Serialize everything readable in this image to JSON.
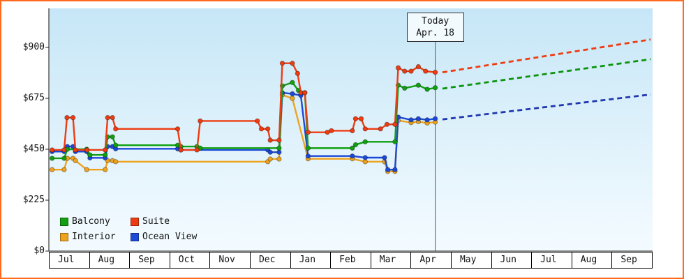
{
  "frame": {
    "border_color": "#ff6a1f",
    "plot_bg_top": "#c6e6f7",
    "plot_bg_bottom": "#f3fbff"
  },
  "today": {
    "label_line1": "Today",
    "label_line2": "Apr. 18",
    "x_months": 9.6
  },
  "y_axis": {
    "ticks": [
      "$0",
      "$225",
      "$450",
      "$675",
      "$900"
    ],
    "values": [
      0,
      225,
      450,
      675,
      900
    ]
  },
  "x_axis": {
    "months": [
      "Jul",
      "Aug",
      "Sep",
      "Oct",
      "Nov",
      "Dec",
      "Jan",
      "Feb",
      "Mar",
      "Apr",
      "May",
      "Jun",
      "Jul",
      "Aug",
      "Sep"
    ]
  },
  "legend": [
    {
      "name": "Balcony",
      "color": "#11a011"
    },
    {
      "name": "Suite",
      "color": "#ee3c12"
    },
    {
      "name": "Interior",
      "color": "#eea31f"
    },
    {
      "name": "Ocean View",
      "color": "#1c49d8"
    }
  ],
  "chart_data": {
    "type": "line",
    "title": "",
    "xlabel": "",
    "ylabel": "",
    "x_unit": "months since Jul 1 (0 = Jul, 1 = Aug, ...)",
    "x_range": [
      0,
      15
    ],
    "ylim": [
      0,
      900
    ],
    "y_tick_labels": [
      "$0",
      "$225",
      "$450",
      "$675",
      "$900"
    ],
    "x_tick_labels": [
      "Jul",
      "Aug",
      "Sep",
      "Oct",
      "Nov",
      "Dec",
      "Jan",
      "Feb",
      "Mar",
      "Apr",
      "May",
      "Jun",
      "Jul",
      "Aug",
      "Sep"
    ],
    "today_marker": {
      "label": "Today Apr. 18",
      "x": 9.6
    },
    "legend_position": "bottom-left",
    "grid": false,
    "series": [
      {
        "name": "Interior",
        "color": "#eea31f",
        "points": [
          [
            0.08,
            360
          ],
          [
            0.38,
            360
          ],
          [
            0.46,
            410
          ],
          [
            0.6,
            410
          ],
          [
            0.66,
            400
          ],
          [
            0.94,
            360
          ],
          [
            1.4,
            360
          ],
          [
            1.46,
            400
          ],
          [
            1.58,
            400
          ],
          [
            1.66,
            395
          ],
          [
            5.44,
            395
          ],
          [
            5.5,
            407
          ],
          [
            5.72,
            407
          ],
          [
            5.8,
            690
          ],
          [
            6.05,
            675
          ],
          [
            6.44,
            408
          ],
          [
            7.54,
            408
          ],
          [
            7.86,
            395
          ],
          [
            8.34,
            395
          ],
          [
            8.42,
            352
          ],
          [
            8.6,
            352
          ],
          [
            8.68,
            577
          ],
          [
            9.0,
            568
          ],
          [
            9.18,
            572
          ],
          [
            9.4,
            566
          ],
          [
            9.6,
            570
          ]
        ]
      },
      {
        "name": "Ocean View",
        "color": "#1c49d8",
        "points": [
          [
            0.08,
            440
          ],
          [
            0.38,
            440
          ],
          [
            0.46,
            462
          ],
          [
            0.6,
            462
          ],
          [
            0.66,
            440
          ],
          [
            0.94,
            440
          ],
          [
            1.02,
            412
          ],
          [
            1.4,
            412
          ],
          [
            1.46,
            462
          ],
          [
            1.58,
            462
          ],
          [
            1.66,
            452
          ],
          [
            3.2,
            452
          ],
          [
            3.28,
            447
          ],
          [
            5.44,
            447
          ],
          [
            5.5,
            437
          ],
          [
            5.72,
            437
          ],
          [
            5.8,
            700
          ],
          [
            6.05,
            695
          ],
          [
            6.26,
            688
          ],
          [
            6.44,
            420
          ],
          [
            7.54,
            420
          ],
          [
            7.86,
            413
          ],
          [
            8.34,
            413
          ],
          [
            8.42,
            360
          ],
          [
            8.6,
            360
          ],
          [
            8.68,
            592
          ],
          [
            9.0,
            580
          ],
          [
            9.18,
            585
          ],
          [
            9.4,
            580
          ],
          [
            9.6,
            585
          ]
        ]
      },
      {
        "name": "Balcony",
        "color": "#11a011",
        "points": [
          [
            0.08,
            410
          ],
          [
            0.38,
            410
          ],
          [
            0.46,
            450
          ],
          [
            0.94,
            450
          ],
          [
            1.02,
            425
          ],
          [
            1.4,
            425
          ],
          [
            1.46,
            505
          ],
          [
            1.58,
            505
          ],
          [
            1.66,
            468
          ],
          [
            3.2,
            468
          ],
          [
            3.28,
            462
          ],
          [
            3.68,
            462
          ],
          [
            3.76,
            455
          ],
          [
            5.72,
            455
          ],
          [
            5.8,
            730
          ],
          [
            6.05,
            745
          ],
          [
            6.2,
            710
          ],
          [
            6.36,
            700
          ],
          [
            6.44,
            455
          ],
          [
            7.54,
            455
          ],
          [
            7.62,
            470
          ],
          [
            7.86,
            483
          ],
          [
            8.6,
            483
          ],
          [
            8.68,
            733
          ],
          [
            8.84,
            720
          ],
          [
            9.18,
            733
          ],
          [
            9.4,
            715
          ],
          [
            9.6,
            722
          ]
        ]
      },
      {
        "name": "Suite",
        "color": "#ee3c12",
        "points": [
          [
            0.08,
            447
          ],
          [
            0.38,
            447
          ],
          [
            0.45,
            590
          ],
          [
            0.6,
            590
          ],
          [
            0.66,
            447
          ],
          [
            0.95,
            447
          ],
          [
            1.4,
            447
          ],
          [
            1.46,
            590
          ],
          [
            1.58,
            590
          ],
          [
            1.66,
            540
          ],
          [
            3.2,
            540
          ],
          [
            3.28,
            447
          ],
          [
            3.68,
            447
          ],
          [
            3.76,
            575
          ],
          [
            5.18,
            575
          ],
          [
            5.28,
            540
          ],
          [
            5.44,
            540
          ],
          [
            5.5,
            490
          ],
          [
            5.72,
            490
          ],
          [
            5.8,
            830
          ],
          [
            6.05,
            830
          ],
          [
            6.18,
            785
          ],
          [
            6.26,
            700
          ],
          [
            6.36,
            700
          ],
          [
            6.44,
            525
          ],
          [
            6.92,
            525
          ],
          [
            7.02,
            532
          ],
          [
            7.54,
            532
          ],
          [
            7.62,
            585
          ],
          [
            7.76,
            585
          ],
          [
            7.86,
            540
          ],
          [
            8.24,
            540
          ],
          [
            8.4,
            560
          ],
          [
            8.6,
            560
          ],
          [
            8.68,
            810
          ],
          [
            8.84,
            795
          ],
          [
            9.0,
            795
          ],
          [
            9.18,
            815
          ],
          [
            9.36,
            795
          ],
          [
            9.6,
            790
          ]
        ]
      }
    ],
    "projections": [
      {
        "name": "Ocean View forecast",
        "color": "#2038ae",
        "points": [
          [
            9.78,
            582
          ],
          [
            14.95,
            692
          ]
        ]
      },
      {
        "name": "Balcony forecast",
        "color": "#0d930d",
        "points": [
          [
            9.78,
            718
          ],
          [
            14.95,
            848
          ]
        ]
      },
      {
        "name": "Suite forecast",
        "color": "#ee3c12",
        "points": [
          [
            9.78,
            790
          ],
          [
            14.95,
            935
          ]
        ]
      }
    ]
  }
}
